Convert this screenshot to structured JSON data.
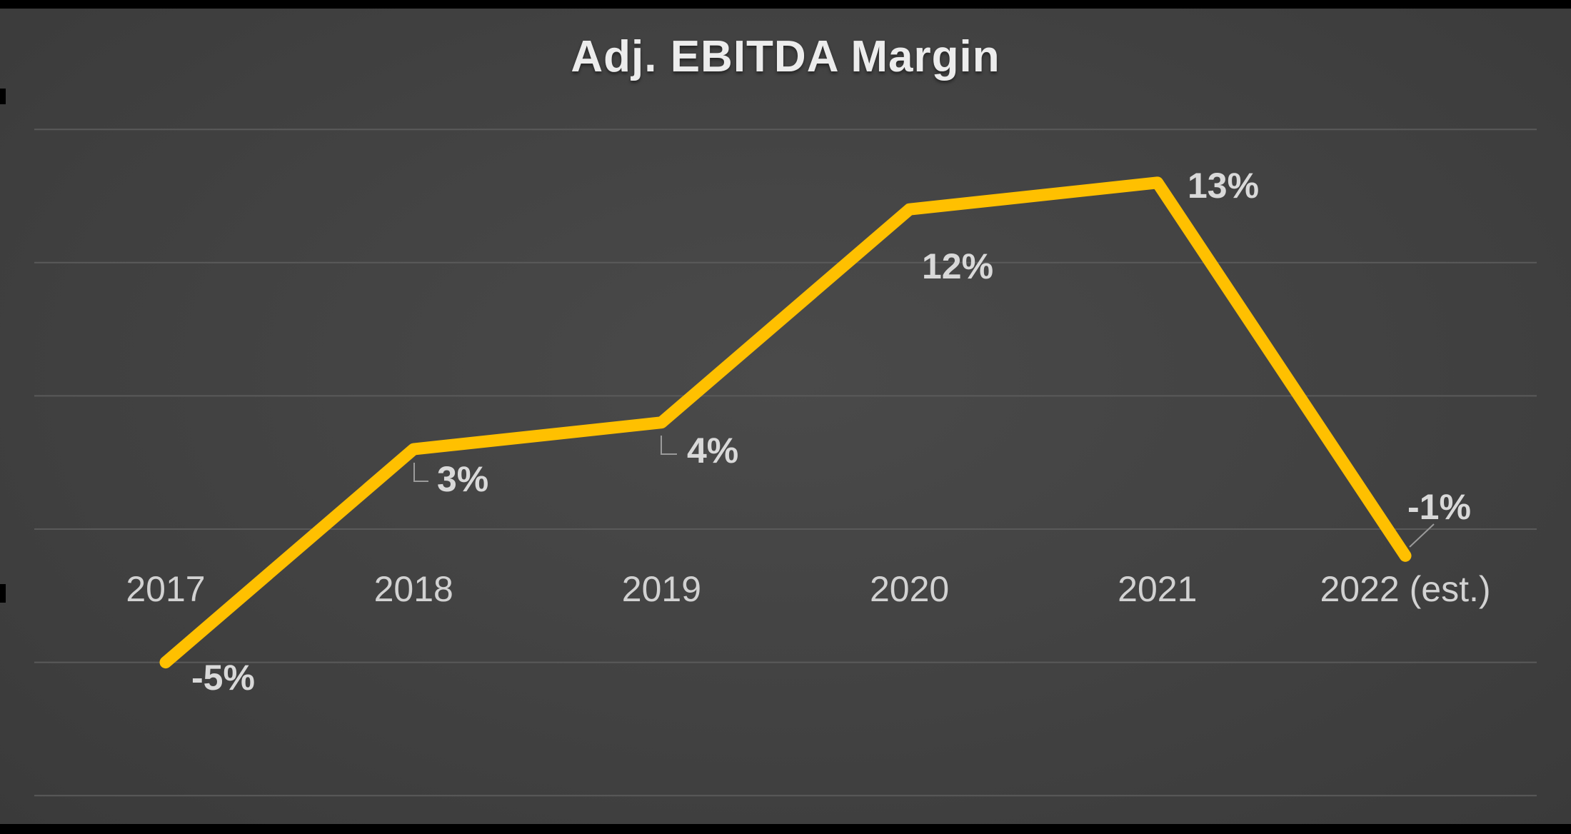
{
  "chart_data": {
    "type": "line",
    "title": "Adj. EBITDA Margin",
    "series_name": "Adj. EBITDA Margin",
    "categories": [
      "2017",
      "2018",
      "2019",
      "2020",
      "2021",
      "2022 (est.)"
    ],
    "values": [
      -5,
      3,
      4,
      12,
      13,
      -1
    ],
    "data_labels": [
      "-5%",
      "3%",
      "4%",
      "12%",
      "13%",
      "-1%"
    ],
    "xlabel": "",
    "ylabel": "",
    "ylim": [
      -10,
      15
    ],
    "gridline_values": [
      15,
      10,
      5,
      0,
      -5,
      -10
    ],
    "grid": true,
    "legend": "none",
    "colors": {
      "line": "#FFC000",
      "data_label": "#D9D9D9",
      "axis_label": "#D2D2D2",
      "title": "#ECECEC",
      "gridline": "#5A5A5A",
      "leader_line": "#9B9B9B",
      "background": "#424242"
    }
  }
}
